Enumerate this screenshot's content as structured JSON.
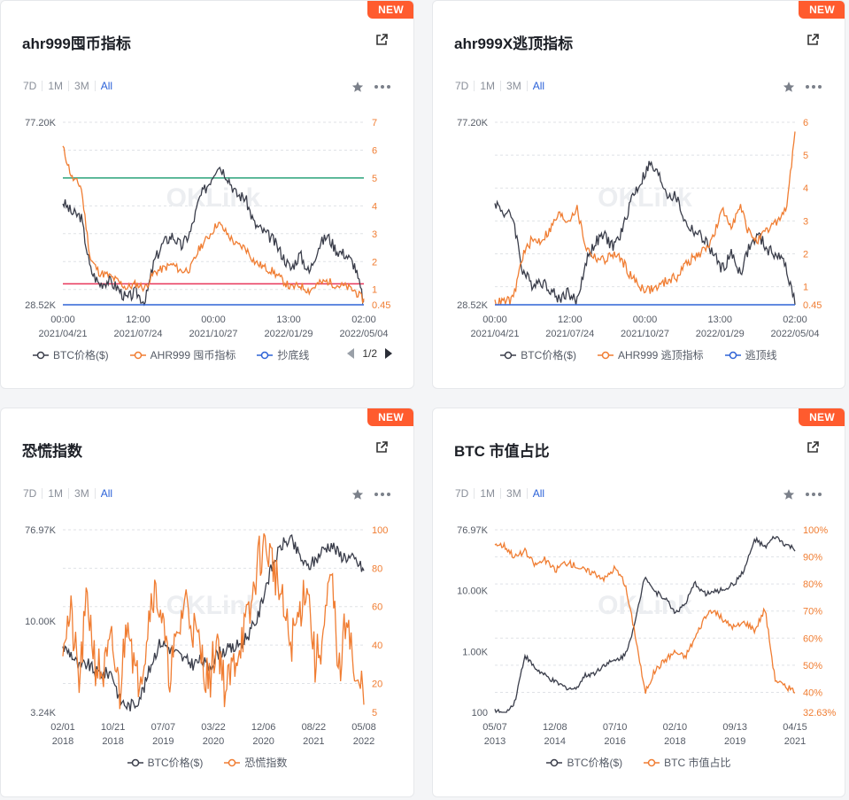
{
  "range_buttons": [
    "7D",
    "1M",
    "3M",
    "All"
  ],
  "active_range": "All",
  "badge": "NEW",
  "cards": [
    {
      "title": "ahr999囤币指标",
      "chart_data": {
        "type": "line",
        "title": "ahr999囤币指标",
        "x_ticks": [
          [
            "00:00",
            "2021/04/21"
          ],
          [
            "12:00",
            "2021/07/24"
          ],
          [
            "00:00",
            "2021/10/27"
          ],
          [
            "13:00",
            "2022/01/29"
          ],
          [
            "02:00",
            "2022/05/04"
          ]
        ],
        "y_left_ticks": [
          "77.20K",
          "28.52K"
        ],
        "y_right_ticks": [
          "7",
          "6",
          "5",
          "4",
          "3",
          "2",
          "1",
          "0.45"
        ],
        "y_right_range": [
          0.45,
          7
        ],
        "series": [
          {
            "name": "BTC价格($)",
            "color": "#3a3d4a",
            "axis": "left",
            "values": [
              56,
              53,
              52,
              38,
              34,
              35,
              33,
              30,
              32,
              29,
              40,
              45,
              47,
              44,
              48,
              57,
              61,
              66,
              63,
              58,
              57,
              50,
              48,
              46,
              42,
              38,
              42,
              37,
              44,
              47,
              43,
              42,
              39,
              29
            ]
          },
          {
            "name": "AHR999 囤币指标",
            "color": "#f07d32",
            "axis": "right",
            "values": [
              6.1,
              5.0,
              4.7,
              2.1,
              1.6,
              1.5,
              1.3,
              1.05,
              1.2,
              1.05,
              1.6,
              1.75,
              1.9,
              1.65,
              1.75,
              2.5,
              2.9,
              3.4,
              3.0,
              2.6,
              2.5,
              2.0,
              1.8,
              1.65,
              1.35,
              1.05,
              1.15,
              0.95,
              1.2,
              1.3,
              1.15,
              1.1,
              0.95,
              0.6
            ]
          },
          {
            "name": "抄底线",
            "color": "#2f63d6",
            "axis": "right",
            "values": [
              0.45,
              0.45
            ]
          }
        ],
        "reference_lines": [
          {
            "value": 5,
            "color": "#2aa37a"
          },
          {
            "value": 1.2,
            "color": "#e8365a"
          }
        ]
      },
      "legend": [
        "BTC价格($)",
        "AHR999 囤币指标",
        "抄底线"
      ],
      "pager": "1/2"
    },
    {
      "title": "ahr999X逃顶指标",
      "chart_data": {
        "type": "line",
        "title": "ahr999X逃顶指标",
        "x_ticks": [
          [
            "00:00",
            "2021/04/21"
          ],
          [
            "12:00",
            "2021/07/24"
          ],
          [
            "00:00",
            "2021/10/27"
          ],
          [
            "13:00",
            "2022/01/29"
          ],
          [
            "02:00",
            "2022/05/04"
          ]
        ],
        "y_left_ticks": [
          "77.20K",
          "28.52K"
        ],
        "y_right_ticks": [
          "6",
          "5",
          "4",
          "3",
          "2",
          "1",
          "0.45"
        ],
        "y_right_range": [
          0.45,
          6
        ],
        "series": [
          {
            "name": "BTC价格($)",
            "color": "#3a3d4a",
            "axis": "left",
            "values": [
              56,
              53,
              52,
              38,
              34,
              35,
              33,
              30,
              32,
              29,
              40,
              45,
              47,
              44,
              48,
              57,
              61,
              66,
              63,
              58,
              57,
              50,
              48,
              46,
              42,
              38,
              42,
              37,
              44,
              47,
              43,
              42,
              39,
              29
            ]
          },
          {
            "name": "AHR999 逃顶指标",
            "color": "#f07d32",
            "axis": "right",
            "values": [
              0.5,
              0.55,
              0.6,
              1.9,
              2.4,
              2.4,
              2.7,
              3.2,
              3.0,
              3.4,
              2.2,
              1.9,
              1.8,
              2.0,
              1.8,
              1.3,
              1.0,
              0.9,
              1.0,
              1.2,
              1.3,
              1.7,
              1.9,
              2.1,
              2.5,
              3.3,
              2.9,
              3.4,
              2.6,
              2.4,
              2.7,
              3.0,
              3.3,
              5.6
            ]
          },
          {
            "name": "逃顶线",
            "color": "#2f63d6",
            "axis": "right",
            "values": [
              0.45,
              0.45
            ]
          }
        ]
      },
      "legend": [
        "BTC价格($)",
        "AHR999 逃顶指标",
        "逃顶线"
      ]
    },
    {
      "title": "恐慌指数",
      "chart_data": {
        "type": "line",
        "title": "恐慌指数",
        "x_ticks": [
          [
            "02/01",
            "2018"
          ],
          [
            "10/21",
            "2018"
          ],
          [
            "07/07",
            "2019"
          ],
          [
            "03/22",
            "2020"
          ],
          [
            "12/06",
            "2020"
          ],
          [
            "08/22",
            "2021"
          ],
          [
            "05/08",
            "2022"
          ]
        ],
        "y_left_ticks": [
          "76.97K",
          "10.00K",
          "3.24K"
        ],
        "y_right_ticks": [
          "100",
          "80",
          "60",
          "40",
          "20",
          "5"
        ],
        "y_right_range": [
          5,
          100
        ],
        "series": [
          {
            "name": "BTC价格($)",
            "color": "#3a3d4a",
            "axis": "left",
            "values": [
              10,
              9,
              7,
              7.5,
              6.5,
              6.3,
              6.5,
              4,
              3.6,
              3.8,
              5,
              8,
              11,
              10,
              9,
              8,
              7.5,
              8,
              7,
              9,
              9.5,
              9.8,
              11,
              13,
              17,
              30,
              45,
              60,
              65,
              50,
              40,
              45,
              55,
              60,
              50,
              48,
              45,
              38
            ]
          },
          {
            "name": "恐慌指数",
            "color": "#f07d32",
            "axis": "right",
            "values": [
              45,
              55,
              20,
              65,
              30,
              25,
              40,
              15,
              60,
              20,
              35,
              70,
              60,
              25,
              40,
              65,
              50,
              35,
              20,
              45,
              15,
              30,
              45,
              55,
              85,
              92,
              80,
              60,
              40,
              55,
              75,
              30,
              45,
              75,
              25,
              60,
              15,
              20
            ]
          }
        ]
      },
      "legend": [
        "BTC价格($)",
        "恐慌指数"
      ]
    },
    {
      "title": "BTC 市值占比",
      "chart_data": {
        "type": "line",
        "title": "BTC 市值占比",
        "x_ticks": [
          [
            "05/07",
            "2013"
          ],
          [
            "12/08",
            "2014"
          ],
          [
            "07/10",
            "2016"
          ],
          [
            "02/10",
            "2018"
          ],
          [
            "09/13",
            "2019"
          ],
          [
            "04/15",
            "2021"
          ]
        ],
        "y_left_ticks": [
          "76.97K",
          "10.00K",
          "1.00K",
          "100"
        ],
        "y_right_ticks": [
          "100%",
          "90%",
          "80%",
          "70%",
          "60%",
          "50%",
          "40%",
          "32.63%"
        ],
        "y_right_range": [
          32.63,
          100
        ],
        "series": [
          {
            "name": "BTC价格($)",
            "color": "#3a3d4a",
            "axis": "left",
            "values": [
              110,
              90,
              150,
              800,
              500,
              380,
              300,
              250,
              230,
              380,
              420,
              580,
              650,
              800,
              2500,
              15000,
              8000,
              6500,
              3800,
              5000,
              11000,
              7500,
              8000,
              9000,
              11000,
              19000,
              55000,
              40000,
              60000,
              45000,
              38000
            ]
          },
          {
            "name": "BTC 市值占比",
            "color": "#f07d32",
            "axis": "right",
            "values": [
              95,
              94,
              90,
              92,
              87,
              89,
              85,
              88,
              87,
              85,
              84,
              82,
              86,
              80,
              62,
              40,
              48,
              52,
              55,
              53,
              60,
              68,
              70,
              66,
              64,
              66,
              63,
              71,
              45,
              42,
              40.5
            ]
          }
        ]
      },
      "legend": [
        "BTC价格($)",
        "BTC 市值占比"
      ]
    }
  ]
}
